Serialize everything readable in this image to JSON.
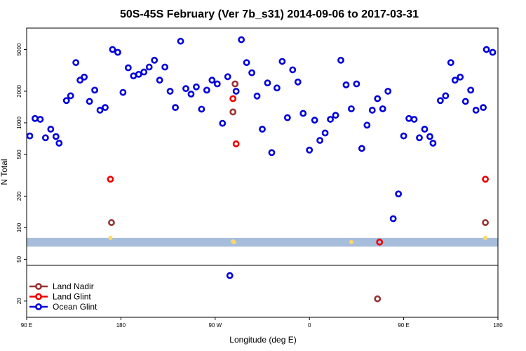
{
  "chart_data": {
    "type": "scatter",
    "title": "50S-45S February (Ver 7b_s31)   2014-09-06 to 2017-03-31",
    "xlabel": "Longitude (deg E)",
    "ylabel": "N Total",
    "yscale": "log",
    "x_ticks": [
      {
        "value": 90,
        "label": "90 E"
      },
      {
        "value": 180,
        "label": "180"
      },
      {
        "value": 270,
        "label": "90 W"
      },
      {
        "value": 360,
        "label": "0"
      },
      {
        "value": 450,
        "label": "90 E"
      },
      {
        "value": 540,
        "label": "180"
      }
    ],
    "y_ticks": [
      {
        "value": 20,
        "label": "20"
      },
      {
        "value": 50,
        "label": "50"
      },
      {
        "value": 100,
        "label": "100"
      },
      {
        "value": 200,
        "label": "200"
      },
      {
        "value": 500,
        "label": "500"
      },
      {
        "value": 1000,
        "label": "1000"
      },
      {
        "value": 2000,
        "label": "2000"
      },
      {
        "value": 5000,
        "label": "5000"
      }
    ],
    "xlim": [
      90,
      540
    ],
    "ylim": [
      14,
      8000
    ],
    "legend_position": "bottom-left",
    "series": [
      {
        "name": "Land Nadir",
        "color": "#993333",
        "points": [
          [
            171,
            112
          ],
          [
            289,
            2350
          ],
          [
            287,
            1270
          ],
          [
            528,
            112
          ],
          [
            425,
            21
          ]
        ]
      },
      {
        "name": "Land Glint",
        "color": "#ee0000",
        "points": [
          [
            170,
            290
          ],
          [
            287,
            1700
          ],
          [
            290,
            630
          ],
          [
            528,
            290
          ],
          [
            427,
            73
          ]
        ]
      },
      {
        "name": "Ocean Glint",
        "color": "#0000dd",
        "points": [
          [
            93,
            750
          ],
          [
            98,
            1100
          ],
          [
            103,
            1080
          ],
          [
            108,
            720
          ],
          [
            113,
            870
          ],
          [
            118,
            740
          ],
          [
            121,
            640
          ],
          [
            128,
            1630
          ],
          [
            132,
            1810
          ],
          [
            137,
            3750
          ],
          [
            141,
            2550
          ],
          [
            145,
            2730
          ],
          [
            150,
            1600
          ],
          [
            155,
            2050
          ],
          [
            160,
            1320
          ],
          [
            165,
            1400
          ],
          [
            172,
            5000
          ],
          [
            177,
            4700
          ],
          [
            182,
            1950
          ],
          [
            187,
            3350
          ],
          [
            192,
            2800
          ],
          [
            197,
            2900
          ],
          [
            202,
            3050
          ],
          [
            207,
            3400
          ],
          [
            212,
            3950
          ],
          [
            217,
            2550
          ],
          [
            222,
            3400
          ],
          [
            227,
            2000
          ],
          [
            232,
            1400
          ],
          [
            237,
            6000
          ],
          [
            242,
            2120
          ],
          [
            247,
            1880
          ],
          [
            252,
            2200
          ],
          [
            257,
            1350
          ],
          [
            262,
            2050
          ],
          [
            267,
            2550
          ],
          [
            272,
            2350
          ],
          [
            277,
            990
          ],
          [
            282,
            2750
          ],
          [
            284,
            35
          ],
          [
            290,
            2000
          ],
          [
            295,
            6200
          ],
          [
            300,
            3750
          ],
          [
            305,
            3000
          ],
          [
            310,
            1800
          ],
          [
            315,
            870
          ],
          [
            320,
            2400
          ],
          [
            324,
            520
          ],
          [
            329,
            2150
          ],
          [
            334,
            3850
          ],
          [
            339,
            1120
          ],
          [
            344,
            3200
          ],
          [
            349,
            2450
          ],
          [
            354,
            1230
          ],
          [
            360,
            550
          ],
          [
            365,
            1060
          ],
          [
            370,
            680
          ],
          [
            375,
            800
          ],
          [
            380,
            1080
          ],
          [
            385,
            1180
          ],
          [
            390,
            3950
          ],
          [
            395,
            2300
          ],
          [
            400,
            1360
          ],
          [
            405,
            2350
          ],
          [
            410,
            570
          ],
          [
            415,
            950
          ],
          [
            420,
            1320
          ],
          [
            425,
            1700
          ],
          [
            430,
            1360
          ],
          [
            435,
            2000
          ],
          [
            440,
            122
          ],
          [
            445,
            210
          ],
          [
            450,
            750
          ],
          [
            455,
            1100
          ],
          [
            460,
            1080
          ],
          [
            465,
            720
          ],
          [
            470,
            870
          ],
          [
            475,
            740
          ],
          [
            478,
            640
          ],
          [
            485,
            1630
          ],
          [
            490,
            1810
          ],
          [
            495,
            3750
          ],
          [
            499,
            2550
          ],
          [
            504,
            2730
          ],
          [
            509,
            1600
          ],
          [
            514,
            2050
          ],
          [
            519,
            1320
          ],
          [
            526,
            1400
          ],
          [
            529,
            5000
          ],
          [
            535,
            4700
          ]
        ]
      }
    ],
    "highlight_band": {
      "y_low": 66,
      "y_high": 80,
      "color": "#a6bddb"
    },
    "yellow_markers": {
      "color": "#ffd966",
      "points": [
        [
          170,
          80
        ],
        [
          287,
          74
        ],
        [
          288,
          73
        ],
        [
          528,
          80
        ],
        [
          400,
          73
        ]
      ]
    }
  }
}
